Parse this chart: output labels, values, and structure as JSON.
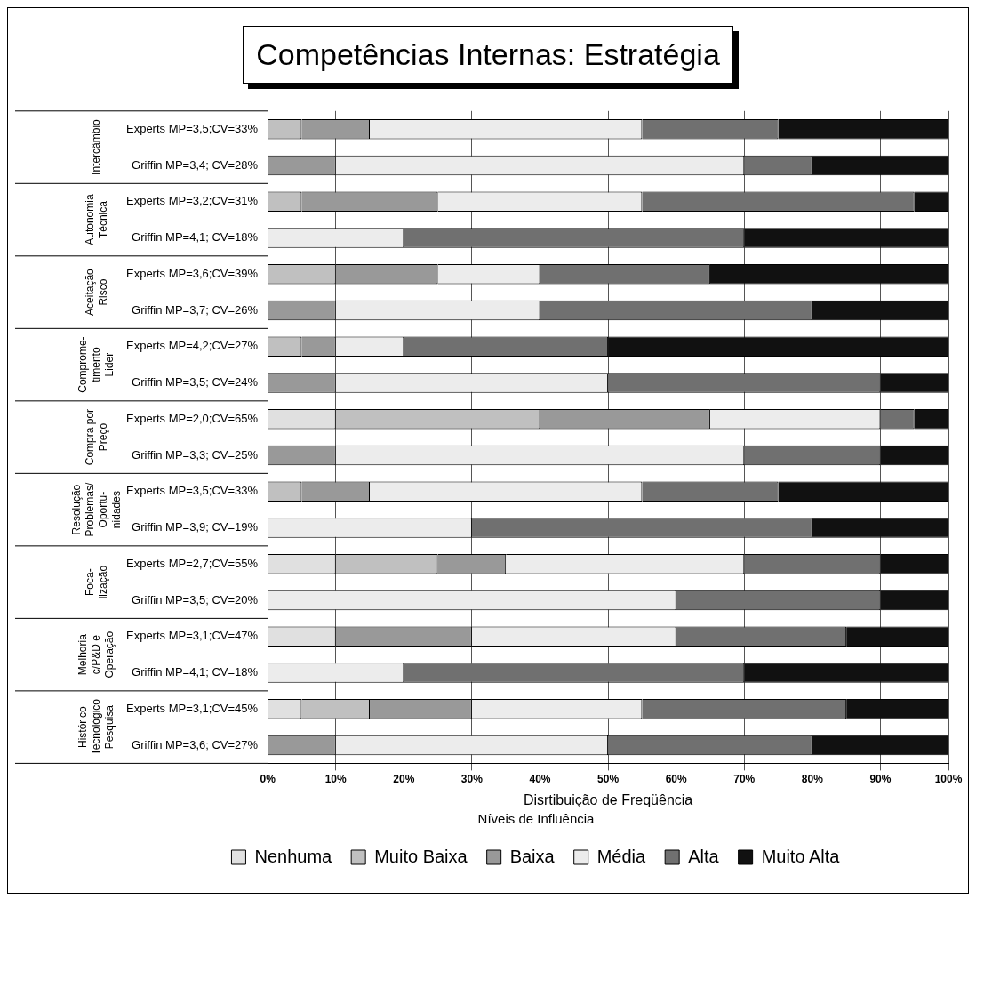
{
  "chart_data": {
    "type": "bar",
    "orientation": "horizontal",
    "stacked": true,
    "title": "Competências Internas: Estratégia",
    "xlabel": "Disrtibuição de Freqüência",
    "legend_title": "Níveis de Influência",
    "legend": "bottom",
    "grid": "x",
    "categories": [
      "Experts MP=3,5;CV=33%",
      "Griffin MP=3,4; CV=28%",
      "Experts MP=3,2;CV=31%",
      "Griffin MP=4,1; CV=18%",
      "Experts MP=3,6;CV=39%",
      "Griffin MP=3,7; CV=26%",
      "Experts MP=4,2;CV=27%",
      "Griffin MP=3,5; CV=24%",
      "Experts MP=2,0;CV=65%",
      "Griffin MP=3,3; CV=25%",
      "Experts MP=3,5;CV=33%",
      "Griffin MP=3,9; CV=19%",
      "Experts MP=2,7;CV=55%",
      "Griffin MP=3,5; CV=20%",
      "Experts MP=3,1;CV=47%",
      "Griffin MP=4,1; CV=18%",
      "Experts MP=3,1;CV=45%",
      "Griffin MP=3,6; CV=27%"
    ],
    "xlim": [
      0,
      100
    ],
    "xticks": [
      {
        "value": 0,
        "label": "0%"
      },
      {
        "value": 10,
        "label": "10%"
      },
      {
        "value": 20,
        "label": "20%"
      },
      {
        "value": 30,
        "label": "30%"
      },
      {
        "value": 40,
        "label": "40%"
      },
      {
        "value": 50,
        "label": "50%"
      },
      {
        "value": 60,
        "label": "60%"
      },
      {
        "value": 70,
        "label": "70%"
      },
      {
        "value": 80,
        "label": "80%"
      },
      {
        "value": 90,
        "label": "90%"
      },
      {
        "value": 100,
        "label": "100%"
      }
    ],
    "series": [
      {
        "name": "Nenhuma",
        "color": "#e0e0e0",
        "values": [
          0,
          0,
          0,
          0,
          0,
          0,
          0,
          0,
          10,
          0,
          0,
          0,
          10,
          0,
          10,
          0,
          5,
          0
        ]
      },
      {
        "name": "Muito Baixa",
        "color": "#c0c0c0",
        "values": [
          5,
          0,
          5,
          0,
          10,
          0,
          5,
          0,
          30,
          0,
          5,
          0,
          15,
          0,
          0,
          0,
          10,
          0
        ]
      },
      {
        "name": "Baixa",
        "color": "#999999",
        "values": [
          10,
          10,
          20,
          0,
          15,
          10,
          5,
          10,
          25,
          10,
          10,
          0,
          10,
          0,
          20,
          0,
          15,
          10
        ]
      },
      {
        "name": "Média",
        "color": "#ececec",
        "values": [
          40,
          60,
          30,
          20,
          15,
          30,
          10,
          40,
          25,
          60,
          40,
          30,
          35,
          60,
          30,
          20,
          25,
          40
        ]
      },
      {
        "name": "Alta",
        "color": "#707070",
        "values": [
          20,
          10,
          40,
          50,
          25,
          40,
          30,
          40,
          5,
          20,
          20,
          50,
          20,
          30,
          25,
          50,
          30,
          30
        ]
      },
      {
        "name": "Muito Alta",
        "color": "#111111",
        "values": [
          25,
          20,
          5,
          30,
          35,
          20,
          50,
          10,
          5,
          10,
          25,
          20,
          10,
          10,
          15,
          30,
          15,
          20
        ]
      }
    ],
    "annotations": [
      "Intercâmbio",
      "Autonomia\nTécnica",
      "Aceitação\nRisco",
      "Comprome-\ntimento\nLider",
      "Compra por\nPreço",
      "Resolução\nProblemas/\nOportu-\nnidades",
      "Foca-\nlização",
      "Melhoria\nc/P&D e\nOperação",
      "Histórico\nTecnológico\nPesquisa"
    ]
  }
}
